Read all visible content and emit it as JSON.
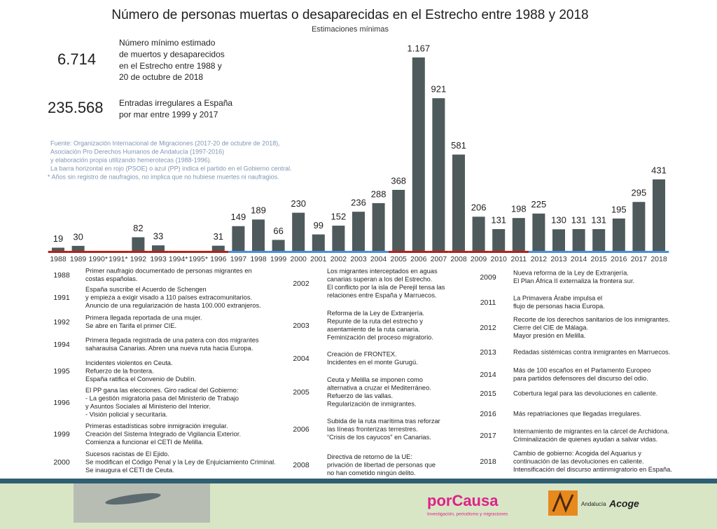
{
  "chart_data": {
    "type": "bar",
    "title": "Número de personas muertas o desaparecidas en el Estrecho entre 1988 y 2018",
    "subtitle": "Estimaciones mínimas",
    "categories": [
      "1988",
      "1989",
      "1990*",
      "1991*",
      "1992",
      "1993",
      "1994*",
      "1995*",
      "1996",
      "1997",
      "1998",
      "1999",
      "2000",
      "2001",
      "2002",
      "2003",
      "2004",
      "2005",
      "2006",
      "2007",
      "2008",
      "2009",
      "2010",
      "2011",
      "2012",
      "2013",
      "2014",
      "2015",
      "2016",
      "2017",
      "2018"
    ],
    "values": [
      19,
      30,
      null,
      null,
      82,
      33,
      null,
      null,
      31,
      149,
      189,
      66,
      230,
      99,
      152,
      236,
      288,
      368,
      1167,
      921,
      581,
      206,
      131,
      198,
      225,
      130,
      131,
      131,
      195,
      295,
      431
    ],
    "value_labels": [
      "19",
      "30",
      null,
      null,
      "82",
      "33",
      null,
      null,
      "31",
      "149",
      "189",
      "66",
      "230",
      "99",
      "152",
      "236",
      "288",
      "368",
      "1.167",
      "921",
      "581",
      "206",
      "131",
      "198",
      "225",
      "130",
      "131",
      "131",
      "195",
      "295",
      "431"
    ],
    "color": "#4e5a5c",
    "baseline_colors": [
      "#b5221e",
      "#b5221e",
      "#b5221e",
      "#b5221e",
      "#b5221e",
      "#b5221e",
      "#b5221e",
      "#b5221e",
      "#b5221e",
      "#4a90d9",
      "#4a90d9",
      "#4a90d9",
      "#4a90d9",
      "#4a90d9",
      "#4a90d9",
      "#4a90d9",
      "#4a90d9",
      "#b5221e",
      "#b5221e",
      "#b5221e",
      "#b5221e",
      "#b5221e",
      "#b5221e",
      "#b5221e",
      "#4a90d9",
      "#4a90d9",
      "#4a90d9",
      "#4a90d9",
      "#4a90d9",
      "#4a90d9",
      "#4a90d9"
    ]
  },
  "stats": [
    {
      "value": "6.714",
      "lines": [
        "Número mínimo estimado",
        "de muertos y desaparecidos",
        "en el Estrecho entre 1988 y",
        "20 de octubre de 2018"
      ]
    },
    {
      "value": "235.568",
      "lines": [
        "Entradas irregulares a España",
        "por mar entre 1999 y 2017"
      ]
    }
  ],
  "notes": [
    "Fuente: Organización Internacional de Migraciones (2017-20 de octubre de 2018),",
    "Asociación Pro Derechos Humanos de Andalucía (1997-2016)",
    "y elaboración propia utilizando hemerotecas (1988-1996).",
    "La barra horizontal en rojo (PSOE) o azul (PP) indica el partido en el Gobierno central.",
    "* Años sin registro de naufragios, no implica que no hubiese muertes ni naufragios."
  ],
  "timeline": [
    [
      {
        "year": "1988",
        "lines": [
          "Primer naufragio documentado de personas migrantes en",
          "costas españolas."
        ]
      },
      {
        "year": "1991",
        "lines": [
          "España suscribe el Acuerdo de Schengen",
          "y empieza a exigir visado a 110 países extracomunitarios.",
          "Anuncio de una regularización de hasta 100.000 extranjeros."
        ]
      },
      {
        "year": "1992",
        "lines": [
          "Primera llegada reportada de una mujer.",
          "Se abre en Tarifa el primer CIE."
        ]
      },
      {
        "year": "1994",
        "lines": [
          "Primera llegada registrada de una patera con dos migrantes",
          "saharauisa Canarias. Abren una nueva ruta hacia Europa."
        ]
      },
      {
        "year": "1995",
        "lines": [
          "Incidentes violentos en Ceuta.",
          "Refuerzo de la frontera.",
          "España ratifica el Convenio de Dublín."
        ]
      },
      {
        "year": "1996",
        "lines": [
          "El PP gana las elecciones. Giro radical del Gobierno:",
          "- La gestión migratoria pasa del Ministerio de Trabajo",
          "y Asuntos Sociales al Ministerio del Interior.",
          "- Visión policial y securitaria."
        ]
      },
      {
        "year": "1999",
        "lines": [
          "Primeras estadísticas sobre inmigración irregular.",
          "Creación del Sistema Integrado de Vigilancia Exterior.",
          "Comienza a funcionar el CETI de Melilla."
        ]
      },
      {
        "year": "2000",
        "lines": [
          "Sucesos racistas de El Ejido.",
          "Se modifican el Código Penal y la Ley de Enjuiciamiento Criminal.",
          "Se inaugura el CETI de Ceuta."
        ]
      }
    ],
    [
      {
        "year": "2002",
        "lines": [
          "Los migrantes interceptados en aguas",
          "canarias superan a los del Estrecho.",
          "El conflicto por la isla de Perejil tensa las",
          "relaciones entre España y Marruecos."
        ]
      },
      {
        "year": "2003",
        "lines": [
          "Reforma de la Ley de Extranjería.",
          "Repunte de la ruta del estrecho y",
          "asentamiento de la ruta canaria.",
          "Feminización del proceso migratorio."
        ]
      },
      {
        "year": "2004",
        "lines": [
          "Creación de FRONTEX.",
          "Incidentes en el monte Gurugú."
        ]
      },
      {
        "year": "2005",
        "lines": [
          "Ceuta y Melilla se imponen como",
          "alternativa a cruzar el Mediterráneo.",
          "Refuerzo de las vallas.",
          "Regularización de inmigrantes."
        ]
      },
      {
        "year": "2006",
        "lines": [
          "Subida de la ruta marítima tras reforzar",
          "las líneas fronterizas terrestres.",
          "“Crisis de los cayucos” en Canarias."
        ]
      },
      {
        "year": "2008",
        "lines": [
          "Directiva de retorno de la UE:",
          "privación de libertad de personas que",
          "no han cometido ningún delito."
        ]
      }
    ],
    [
      {
        "year": "2009",
        "lines": [
          "Nueva reforma de la Ley de Extranjería.",
          "El Plan África II externaliza la frontera sur."
        ]
      },
      {
        "year": "2011",
        "lines": [
          "La Primavera Árabe impulsa el",
          "flujo de personas hacia Europa."
        ]
      },
      {
        "year": "2012",
        "lines": [
          "Recorte de los derechos sanitarios de los inmigrantes.",
          "Cierre del CIE de Málaga.",
          "Mayor presión en Melilla."
        ]
      },
      {
        "year": "2013",
        "lines": [
          "Redadas sistémicas contra inmigrantes en Marruecos."
        ]
      },
      {
        "year": "2014",
        "lines": [
          "Más de 100 escaños en el Parlamento Europeo",
          "para partidos defensores del discurso del odio."
        ]
      },
      {
        "year": "2015",
        "lines": [
          "Cobertura legal para las devoluciones en caliente."
        ]
      },
      {
        "year": "2016",
        "lines": [
          "Más repatriaciones que llegadas irregulares."
        ]
      },
      {
        "year": "2017",
        "lines": [
          "Internamiento de migrantes en la cárcel de Archidona.",
          "Criminalización de quienes ayudan a salvar vidas."
        ]
      },
      {
        "year": "2018",
        "lines": [
          "Cambio de gobierno: Acogida del Aquarius y",
          "continuación de las devoluciones en caliente.",
          "Intensificación del discurso antiinmigratorio en España."
        ]
      }
    ]
  ],
  "footer": {
    "brand": "porCausa",
    "tagline": "Investigación, periodismo y migraciones",
    "partner_region": "Andalucía",
    "partner": "Acoge"
  }
}
